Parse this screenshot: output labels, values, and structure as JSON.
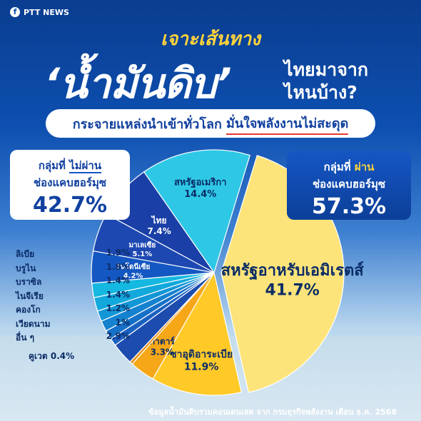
{
  "header": {
    "brand": "PTT NEWS",
    "brand_icon": "facebook-icon",
    "kicker": "เจาะเส้นทาง",
    "headline": "‘น้ำมันดิบ’",
    "headline_side_1": "ไทยมาจาก",
    "headline_side_2": "ไหนบ้าง?",
    "subtitle_a": "กระจายแหล่งนำเข้าทั่วโลก",
    "subtitle_b": "มั่นใจพลังงานไม่สะดุด"
  },
  "groups": {
    "left": {
      "line1_a": "กลุ่มที่",
      "line1_b": "ไม่ผ่าน",
      "line2": "ช่องแคบฮอร์มุซ",
      "value": "42.7%"
    },
    "right": {
      "line1_a": "กลุ่มที่",
      "line1_b": "ผ่าน",
      "line2": "ช่องแคบฮอร์มุซ",
      "value": "57.3%"
    }
  },
  "colors": {
    "accent_yellow": "#ffd43b",
    "navy": "#1140a0",
    "red": "#e53935"
  },
  "chart_data": {
    "type": "pie",
    "title": "",
    "series": [
      {
        "label": "สหรัฐอาหรับเอมิเรตส์",
        "value": 41.7,
        "display": "41.7%",
        "color": "#fde47a"
      },
      {
        "label": "ซาอุดิอาระเบีย",
        "value": 11.9,
        "display": "11.9%",
        "color": "#ffc928"
      },
      {
        "label": "กาตาร์",
        "value": 3.3,
        "display": "3.3%",
        "color": "#f5a718"
      },
      {
        "label": "คูเวต",
        "value": 0.4,
        "display": "0.4%",
        "color": "#e8941a"
      },
      {
        "label": "อื่น ๆ",
        "value": 2.9,
        "display": "2.9%",
        "color": "#1c4cae"
      },
      {
        "label": "เวียดนาม",
        "value": 1.0,
        "display": "1%",
        "color": "#1a60c0"
      },
      {
        "label": "คองโก",
        "value": 1.2,
        "display": "1.2%",
        "color": "#1670c8"
      },
      {
        "label": "ไนจีเรีย",
        "value": 1.4,
        "display": "1.4%",
        "color": "#1482cf"
      },
      {
        "label": "บราซิล",
        "value": 1.4,
        "display": "1.4%",
        "color": "#1296d6"
      },
      {
        "label": "บรูไน",
        "value": 1.8,
        "display": "1.8%",
        "color": "#12a8dc"
      },
      {
        "label": "ลิเบีย",
        "value": 1.9,
        "display": "1.9%",
        "color": "#15b8e0"
      },
      {
        "label": "อินโดนีเซีย",
        "value": 4.2,
        "display": "4.2%",
        "color": "#1457c2"
      },
      {
        "label": "มาเลเซีย",
        "value": 5.1,
        "display": "5.1%",
        "color": "#1d48b2"
      },
      {
        "label": "ไทย",
        "value": 7.4,
        "display": "7.4%",
        "color": "#1a3fa6"
      },
      {
        "label": "สหรัฐอเมริกา",
        "value": 14.4,
        "display": "14.4%",
        "color": "#2ec8e6"
      }
    ]
  },
  "country_list": [
    {
      "name": "ลิเบีย",
      "value": "1.9%"
    },
    {
      "name": "บรูไน",
      "value": "1.8%"
    },
    {
      "name": "บราซิล",
      "value": "1.4%"
    },
    {
      "name": "ไนจีเรีย",
      "value": "1.4%"
    },
    {
      "name": "คองโก",
      "value": "1.2%"
    },
    {
      "name": "เวียดนาม",
      "value": "1%"
    },
    {
      "name": "อื่น ๆ",
      "value": "2.9%"
    }
  ],
  "kuwait_label": {
    "name": "คูเวต",
    "value": "0.4%"
  },
  "footnote": {
    "text_a": "ข้อมูลน้ำมันดิบรวมคอนเดนเสต จาก",
    "text_b": "กรมธุรกิจพลังงาน",
    "text_c": "เดือน ธ.ค. 2568"
  }
}
